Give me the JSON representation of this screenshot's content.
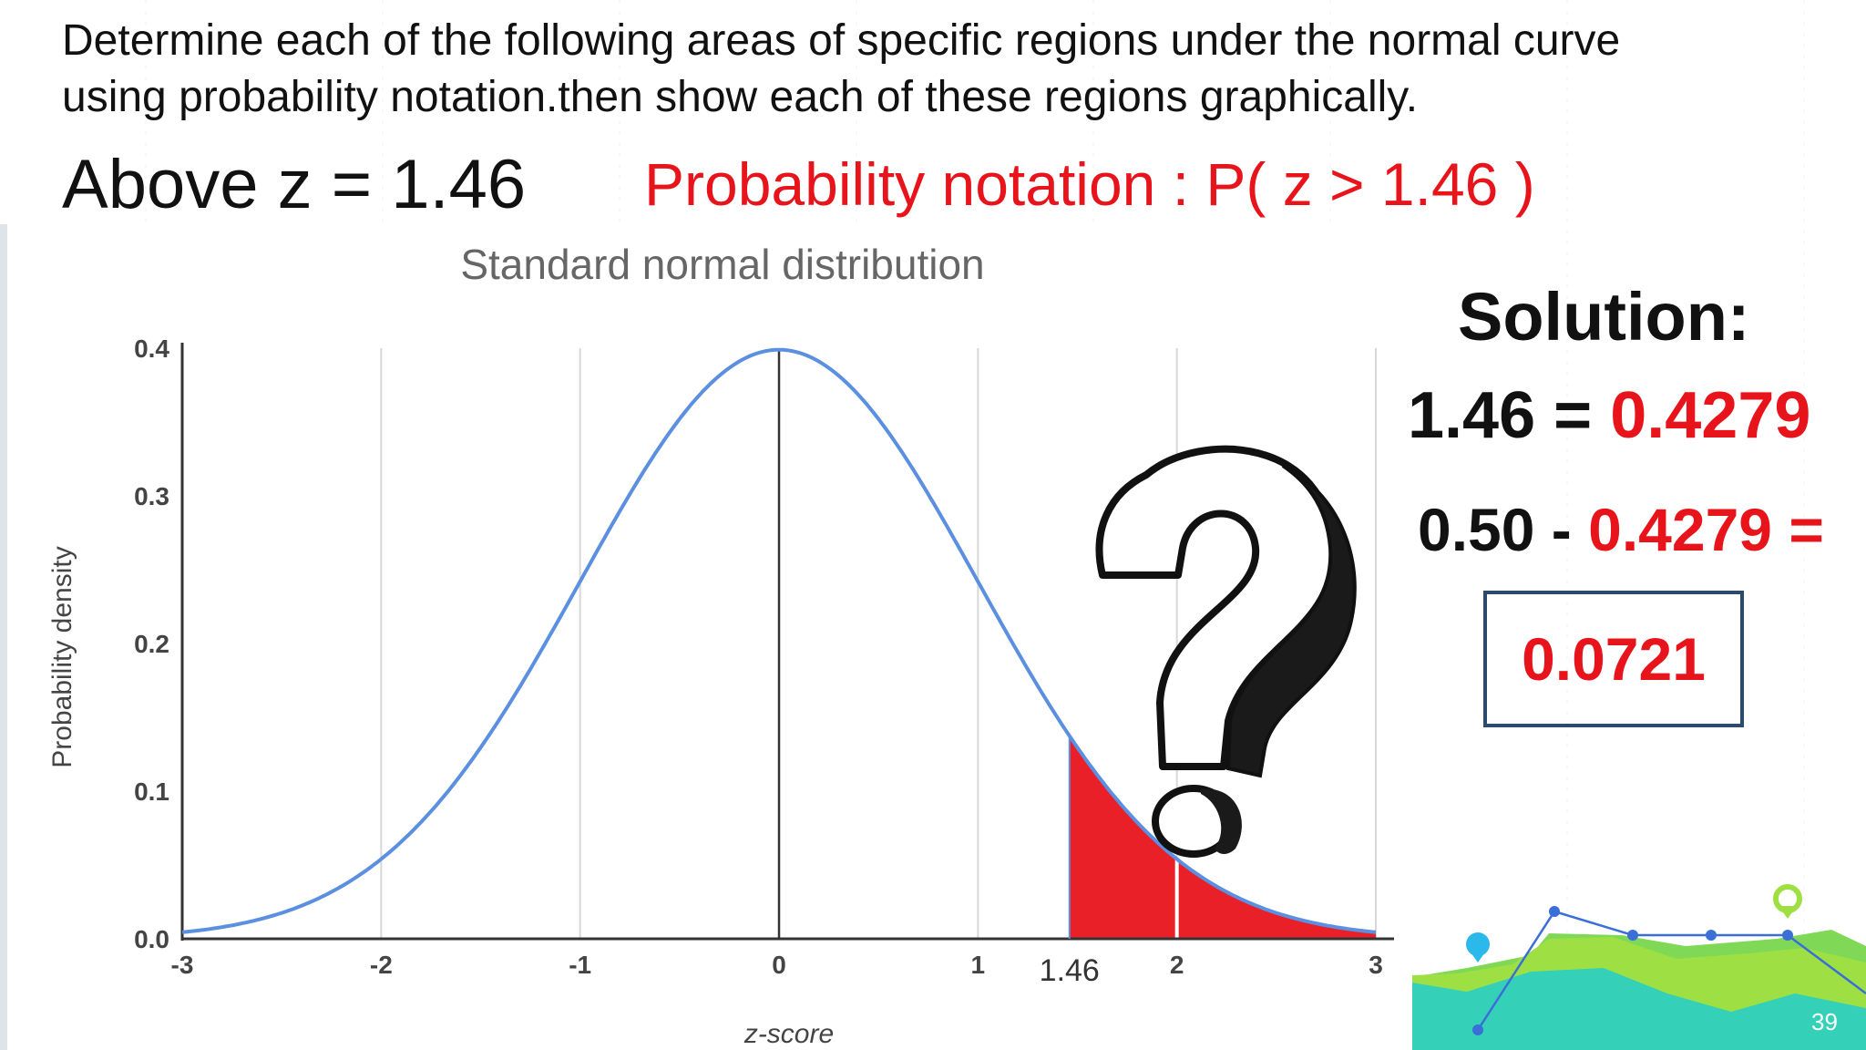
{
  "instruction": {
    "line1": "Determine each of the following areas of specific regions under the normal curve",
    "line2": "using probability notation.then show each of these regions graphically."
  },
  "problem": {
    "label": "Above z = 1.46",
    "notation": "Probability notation : P( z > 1.46 )"
  },
  "solution": {
    "title": "Solution:",
    "line1_prefix": "1.46 = ",
    "line1_value": "0.4279",
    "line2_prefix": "0.50 - ",
    "line2_value": "0.4279 =",
    "answer": "0.0721"
  },
  "chart_data": {
    "type": "area",
    "title": "Standard normal distribution",
    "xlabel": "z-score",
    "ylabel": "Probability density",
    "xlim": [
      -3,
      3
    ],
    "ylim": [
      0,
      0.4
    ],
    "x_ticks": [
      "-3",
      "-2",
      "-1",
      "0",
      "1",
      "1.46",
      "2",
      "3"
    ],
    "x_tick_values": [
      -3,
      -2,
      -1,
      0,
      1,
      1.46,
      2,
      3
    ],
    "y_ticks": [
      "0.0",
      "0.1",
      "0.2",
      "0.3",
      "0.4"
    ],
    "y_tick_values": [
      0,
      0.1,
      0.2,
      0.3,
      0.4
    ],
    "series": [
      {
        "curve": "standard normal pdf",
        "mean": 0,
        "sd": 1
      }
    ],
    "shaded_region": {
      "from": 1.46,
      "to": 3,
      "color": "#e8141c"
    },
    "grid": "vertical",
    "curve_color": "#5b8fe0"
  },
  "page_number": "39",
  "icons": {
    "question_mark": "question-mark-icon",
    "decoration": "line-chart-decoration"
  }
}
